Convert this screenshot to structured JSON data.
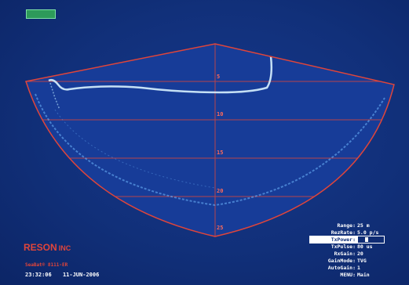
{
  "status": {
    "label": ""
  },
  "sonar": {
    "range_marks": [
      "5",
      "10",
      "15",
      "20",
      "25"
    ],
    "colors": {
      "fan_outline": "#e0453a",
      "grid": "#e0453a",
      "echo": "#b8e4ff",
      "background": "#12307a"
    }
  },
  "brand": {
    "logo": "RESON",
    "logo_sub": "INC",
    "model": "SeaBat® 8111-ER"
  },
  "footer": {
    "time": "23:32:06",
    "date": "11-JUN-2006"
  },
  "params": [
    {
      "label": "Range:",
      "value": "25 m"
    },
    {
      "label": "RezRate:",
      "value": "5.0 p/s"
    },
    {
      "label": "TxPower:",
      "value": ""
    },
    {
      "label": "TxPulse:",
      "value": "80 us"
    },
    {
      "label": "RxGain:",
      "value": "20"
    },
    {
      "label": "GainMode:",
      "value": "TVG"
    },
    {
      "label": "AutoGain:",
      "value": "1"
    },
    {
      "label": "MENU:",
      "value": "Main"
    }
  ]
}
